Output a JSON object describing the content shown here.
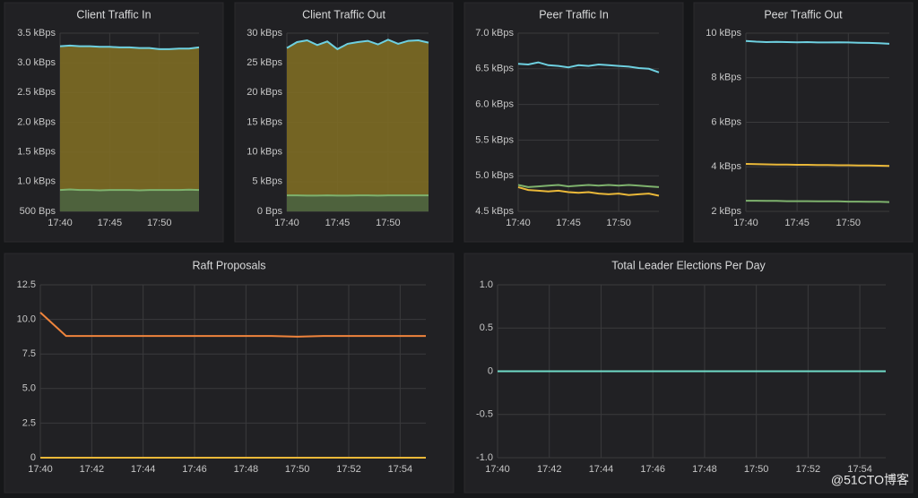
{
  "chart_data": [
    {
      "type": "line",
      "title": "Client Traffic In",
      "x": [
        "17:40",
        "17:41",
        "17:42",
        "17:43",
        "17:44",
        "17:45",
        "17:46",
        "17:47",
        "17:48",
        "17:49",
        "17:50",
        "17:51",
        "17:52",
        "17:53",
        "17:54"
      ],
      "xlim": [
        "17:40",
        "17:54"
      ],
      "xticks": [
        "17:40",
        "17:45",
        "17:50"
      ],
      "ylim": [
        500,
        3500
      ],
      "yticks": [
        {
          "value": 500,
          "label": "500 Bps"
        },
        {
          "value": 1000,
          "label": "1.0 kBps"
        },
        {
          "value": 1500,
          "label": "1.5 kBps"
        },
        {
          "value": 2000,
          "label": "2.0 kBps"
        },
        {
          "value": 2500,
          "label": "2.5 kBps"
        },
        {
          "value": 3000,
          "label": "3.0 kBps"
        },
        {
          "value": 3500,
          "label": "3.5 kBps"
        }
      ],
      "grid": true,
      "series": [
        {
          "color": "#6ed0e0",
          "fill": "#7d6c24",
          "values": [
            3280,
            3290,
            3280,
            3280,
            3270,
            3270,
            3260,
            3260,
            3250,
            3250,
            3230,
            3230,
            3240,
            3240,
            3260
          ]
        },
        {
          "color": "#7eb26d",
          "fill": "#4a6240",
          "values": [
            860,
            870,
            860,
            860,
            855,
            860,
            860,
            860,
            855,
            860,
            860,
            860,
            860,
            865,
            860
          ]
        }
      ]
    },
    {
      "type": "line",
      "title": "Client Traffic Out",
      "x": [
        "17:40",
        "17:41",
        "17:42",
        "17:43",
        "17:44",
        "17:45",
        "17:46",
        "17:47",
        "17:48",
        "17:49",
        "17:50",
        "17:51",
        "17:52",
        "17:53",
        "17:54"
      ],
      "xlim": [
        "17:40",
        "17:54"
      ],
      "xticks": [
        "17:40",
        "17:45",
        "17:50"
      ],
      "ylim": [
        0,
        30000
      ],
      "yticks": [
        {
          "value": 0,
          "label": "0 Bps"
        },
        {
          "value": 5000,
          "label": "5 kBps"
        },
        {
          "value": 10000,
          "label": "10 kBps"
        },
        {
          "value": 15000,
          "label": "15 kBps"
        },
        {
          "value": 20000,
          "label": "20 kBps"
        },
        {
          "value": 25000,
          "label": "25 kBps"
        },
        {
          "value": 30000,
          "label": "30 kBps"
        }
      ],
      "grid": true,
      "series": [
        {
          "color": "#6ed0e0",
          "fill": "#7d6c24",
          "values": [
            27500,
            28500,
            28800,
            28000,
            28600,
            27300,
            28200,
            28500,
            28700,
            28100,
            28900,
            28200,
            28700,
            28800,
            28400
          ]
        },
        {
          "color": "#7eb26d",
          "fill": "#4a6240",
          "values": [
            2700,
            2700,
            2650,
            2650,
            2700,
            2650,
            2650,
            2700,
            2700,
            2650,
            2700,
            2700,
            2700,
            2700,
            2700
          ]
        }
      ]
    },
    {
      "type": "line",
      "title": "Peer Traffic In",
      "x": [
        "17:40",
        "17:41",
        "17:42",
        "17:43",
        "17:44",
        "17:45",
        "17:46",
        "17:47",
        "17:48",
        "17:49",
        "17:50",
        "17:51",
        "17:52",
        "17:53",
        "17:54"
      ],
      "xlim": [
        "17:40",
        "17:54"
      ],
      "xticks": [
        "17:40",
        "17:45",
        "17:50"
      ],
      "ylim": [
        4500,
        7000
      ],
      "yticks": [
        {
          "value": 4500,
          "label": "4.5 kBps"
        },
        {
          "value": 5000,
          "label": "5.0 kBps"
        },
        {
          "value": 5500,
          "label": "5.5 kBps"
        },
        {
          "value": 6000,
          "label": "6.0 kBps"
        },
        {
          "value": 6500,
          "label": "6.5 kBps"
        },
        {
          "value": 7000,
          "label": "7.0 kBps"
        }
      ],
      "grid": true,
      "series": [
        {
          "color": "#6ed0e0",
          "values": [
            6570,
            6560,
            6590,
            6550,
            6540,
            6520,
            6550,
            6540,
            6560,
            6550,
            6540,
            6530,
            6510,
            6500,
            6450
          ]
        },
        {
          "color": "#7eb26d",
          "values": [
            4870,
            4840,
            4850,
            4860,
            4870,
            4850,
            4860,
            4870,
            4860,
            4870,
            4860,
            4870,
            4860,
            4850,
            4840
          ]
        },
        {
          "color": "#eab839",
          "values": [
            4840,
            4800,
            4790,
            4780,
            4790,
            4770,
            4760,
            4770,
            4750,
            4740,
            4750,
            4730,
            4740,
            4750,
            4720
          ]
        }
      ]
    },
    {
      "type": "line",
      "title": "Peer Traffic Out",
      "x": [
        "17:40",
        "17:41",
        "17:42",
        "17:43",
        "17:44",
        "17:45",
        "17:46",
        "17:47",
        "17:48",
        "17:49",
        "17:50",
        "17:51",
        "17:52",
        "17:53",
        "17:54"
      ],
      "xlim": [
        "17:40",
        "17:54"
      ],
      "xticks": [
        "17:40",
        "17:45",
        "17:50"
      ],
      "ylim": [
        2000,
        10000
      ],
      "yticks": [
        {
          "value": 2000,
          "label": "2 kBps"
        },
        {
          "value": 4000,
          "label": "4 kBps"
        },
        {
          "value": 6000,
          "label": "6 kBps"
        },
        {
          "value": 8000,
          "label": "8 kBps"
        },
        {
          "value": 10000,
          "label": "10 kBps"
        }
      ],
      "grid": true,
      "series": [
        {
          "color": "#6ed0e0",
          "values": [
            9650,
            9620,
            9600,
            9610,
            9600,
            9590,
            9600,
            9580,
            9580,
            9590,
            9580,
            9570,
            9560,
            9550,
            9520
          ]
        },
        {
          "color": "#eab839",
          "values": [
            4130,
            4120,
            4110,
            4100,
            4100,
            4090,
            4090,
            4080,
            4080,
            4070,
            4070,
            4060,
            4060,
            4050,
            4040
          ]
        },
        {
          "color": "#7eb26d",
          "values": [
            2480,
            2480,
            2470,
            2470,
            2460,
            2460,
            2460,
            2450,
            2450,
            2450,
            2440,
            2440,
            2430,
            2430,
            2420
          ]
        }
      ]
    },
    {
      "type": "line",
      "title": "Raft Proposals",
      "x": [
        "17:40",
        "17:41",
        "17:42",
        "17:43",
        "17:44",
        "17:45",
        "17:46",
        "17:47",
        "17:48",
        "17:49",
        "17:50",
        "17:51",
        "17:52",
        "17:53",
        "17:54",
        "17:55"
      ],
      "xlim": [
        "17:40",
        "17:55"
      ],
      "xticks": [
        "17:40",
        "17:42",
        "17:44",
        "17:46",
        "17:48",
        "17:50",
        "17:52",
        "17:54"
      ],
      "ylim": [
        0,
        12.5
      ],
      "yticks": [
        0,
        2.5,
        {
          "value": 5,
          "label": "5.0"
        },
        7.5,
        {
          "value": 10,
          "label": "10.0"
        },
        12.5
      ],
      "grid": true,
      "series": [
        {
          "color": "#ef843c",
          "values": [
            10.5,
            8.8,
            8.8,
            8.8,
            8.8,
            8.8,
            8.8,
            8.8,
            8.8,
            8.8,
            8.75,
            8.8,
            8.8,
            8.8,
            8.8,
            8.8
          ]
        },
        {
          "color": "#eab839",
          "values": [
            0,
            0,
            0,
            0,
            0,
            0,
            0,
            0,
            0,
            0,
            0,
            0,
            0,
            0,
            0,
            0
          ]
        }
      ]
    },
    {
      "type": "line",
      "title": "Total Leader Elections Per Day",
      "x": [
        "17:40",
        "17:41",
        "17:42",
        "17:43",
        "17:44",
        "17:45",
        "17:46",
        "17:47",
        "17:48",
        "17:49",
        "17:50",
        "17:51",
        "17:52",
        "17:53",
        "17:54",
        "17:55"
      ],
      "xlim": [
        "17:40",
        "17:55"
      ],
      "xticks": [
        "17:40",
        "17:42",
        "17:44",
        "17:46",
        "17:48",
        "17:50",
        "17:52",
        "17:54"
      ],
      "ylim": [
        -1,
        1
      ],
      "yticks": [
        {
          "value": -1,
          "label": "-1.0"
        },
        -0.5,
        0,
        0.5,
        {
          "value": 1,
          "label": "1.0"
        }
      ],
      "grid": true,
      "series": [
        {
          "color": "#70dbc8",
          "values": [
            0,
            0,
            0,
            0,
            0,
            0,
            0,
            0,
            0,
            0,
            0,
            0,
            0,
            0,
            0,
            0
          ]
        }
      ]
    }
  ],
  "watermark": "@51CTO博客"
}
